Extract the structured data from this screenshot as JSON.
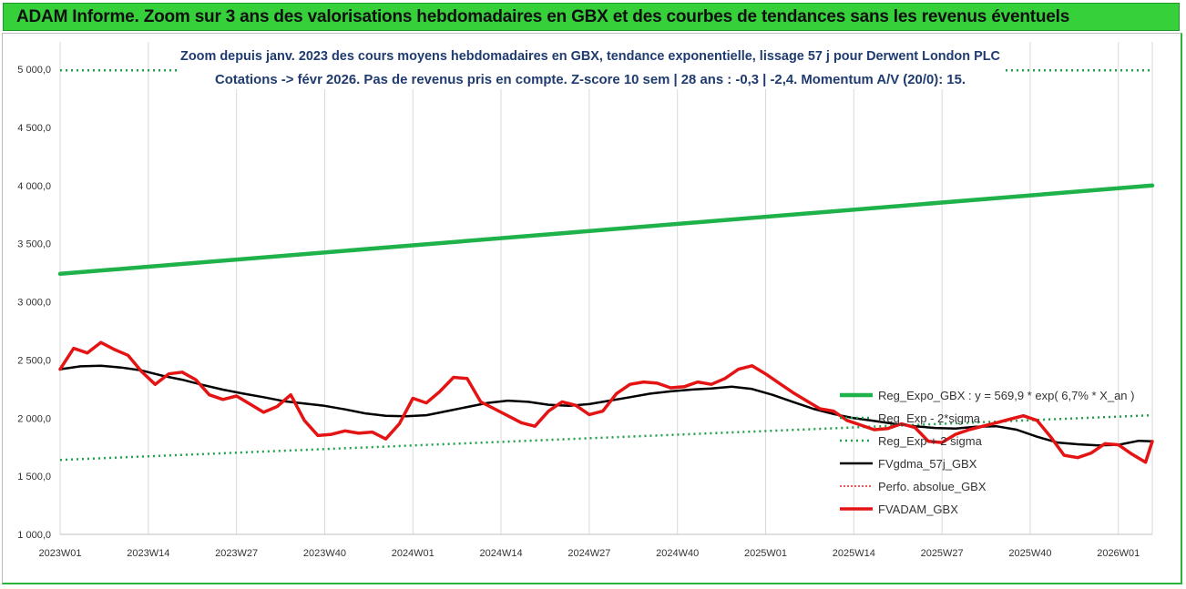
{
  "banner": {
    "title": "ADAM Informe. Zoom sur 3 ans des valorisations hebdomadaires en GBX et des courbes de tendances sans les revenus éventuels"
  },
  "chart_data": {
    "type": "line",
    "title_line1": "Zoom depuis janv. 2023 des cours moyens hebdomadaires en GBX, tendance exponentielle, lissage 57 j pour Derwent London PLC",
    "title_line2": "Cotations -> févr 2026. Pas de revenus pris en compte. Z-score 10 sem | 28 ans : -0,3 | -2,4. Momentum A/V (20/0): 15.",
    "ylim": [
      1000,
      5000
    ],
    "yticks": [
      "1 000,0",
      "1 500,0",
      "2 000,0",
      "2 500,0",
      "3 000,0",
      "3 500,0",
      "4 000,0",
      "4 500,0",
      "5 000,0"
    ],
    "ytick_values": [
      1000,
      1500,
      2000,
      2500,
      3000,
      3500,
      4000,
      4500,
      5000
    ],
    "x_categories": [
      "2023W01",
      "2023W14",
      "2023W27",
      "2023W40",
      "2024W01",
      "2024W14",
      "2024W27",
      "2024W40",
      "2025W01",
      "2025W14",
      "2025W27",
      "2025W40",
      "2026W01"
    ],
    "x_first": "2023W01",
    "x_last": "2026W06",
    "n_weeks": 162,
    "grid": "vertical",
    "legend_position": "right",
    "colors": {
      "reg_expo": "#1fb24a",
      "reg_band": "#1fa04a",
      "fvgdma": "#000000",
      "perfo": "#e02020",
      "fvadam": "#e41414"
    },
    "series": [
      {
        "name": "Reg_Expo_GBX : y = 569,9 * exp( 6,7% *  X_an )",
        "key": "reg_expo",
        "style": "solid-thick",
        "x_index": [
          0,
          161
        ],
        "values": [
          3240,
          4000
        ]
      },
      {
        "name": "Reg_Exp - 2*sigma",
        "key": "reg_minus",
        "style": "dotted",
        "x_index": [
          0,
          161
        ],
        "values": [
          1640,
          2025
        ]
      },
      {
        "name": "Reg_Exp + 2 sigma",
        "key": "reg_plus",
        "style": "dotted",
        "x_index": [
          0,
          161
        ],
        "values": [
          4990,
          4990
        ]
      },
      {
        "name": "FVgdma_57j_GBX",
        "key": "fvgdma",
        "style": "solid",
        "x_index": [
          0,
          3,
          6,
          9,
          12,
          15,
          18,
          21,
          24,
          27,
          30,
          33,
          36,
          39,
          42,
          45,
          48,
          51,
          54,
          57,
          60,
          63,
          66,
          69,
          72,
          75,
          78,
          81,
          84,
          87,
          90,
          93,
          96,
          99,
          102,
          105,
          108,
          111,
          114,
          117,
          120,
          123,
          126,
          129,
          132,
          135,
          138,
          141,
          144,
          147,
          150,
          153,
          156,
          159,
          161
        ],
        "values": [
          2420,
          2445,
          2450,
          2435,
          2410,
          2365,
          2330,
          2285,
          2245,
          2210,
          2180,
          2145,
          2125,
          2105,
          2075,
          2040,
          2020,
          2015,
          2025,
          2060,
          2095,
          2130,
          2150,
          2140,
          2115,
          2105,
          2120,
          2150,
          2180,
          2210,
          2230,
          2245,
          2255,
          2270,
          2250,
          2200,
          2140,
          2080,
          2035,
          2000,
          1975,
          1950,
          1930,
          1915,
          1910,
          1925,
          1930,
          1900,
          1840,
          1790,
          1775,
          1765,
          1770,
          1805,
          1800
        ]
      },
      {
        "name": "Perfo. absolue_GBX",
        "key": "perfo",
        "style": "dotted",
        "x_index": [],
        "values": []
      },
      {
        "name": "FVADAM_GBX",
        "key": "fvadam",
        "style": "solid-thick",
        "x_index": [
          0,
          2,
          4,
          6,
          8,
          10,
          12,
          14,
          16,
          18,
          20,
          22,
          24,
          26,
          28,
          30,
          32,
          34,
          36,
          38,
          40,
          42,
          44,
          46,
          48,
          50,
          52,
          54,
          56,
          58,
          60,
          62,
          64,
          66,
          68,
          70,
          72,
          74,
          76,
          78,
          80,
          82,
          84,
          86,
          88,
          90,
          92,
          94,
          96,
          98,
          100,
          102,
          104,
          106,
          108,
          110,
          112,
          114,
          116,
          118,
          120,
          122,
          124,
          126,
          128,
          130,
          132,
          134,
          136,
          138,
          140,
          142,
          144,
          146,
          148,
          150,
          152,
          154,
          156,
          158,
          160,
          161
        ],
        "values": [
          2420,
          2600,
          2560,
          2650,
          2590,
          2540,
          2400,
          2290,
          2380,
          2395,
          2330,
          2200,
          2160,
          2190,
          2120,
          2050,
          2100,
          2200,
          1980,
          1850,
          1860,
          1890,
          1870,
          1880,
          1820,
          1950,
          2170,
          2130,
          2230,
          2350,
          2340,
          2140,
          2080,
          2020,
          1960,
          1930,
          2060,
          2140,
          2110,
          2030,
          2060,
          2210,
          2290,
          2310,
          2300,
          2260,
          2270,
          2310,
          2290,
          2340,
          2420,
          2450,
          2380,
          2300,
          2220,
          2150,
          2080,
          2060,
          1980,
          1940,
          1900,
          1910,
          1950,
          1920,
          1800,
          1790,
          1860,
          1900,
          1930,
          1960,
          1990,
          2020,
          1980,
          1840,
          1680,
          1660,
          1700,
          1780,
          1770,
          1690,
          1620,
          1800
        ]
      }
    ]
  }
}
